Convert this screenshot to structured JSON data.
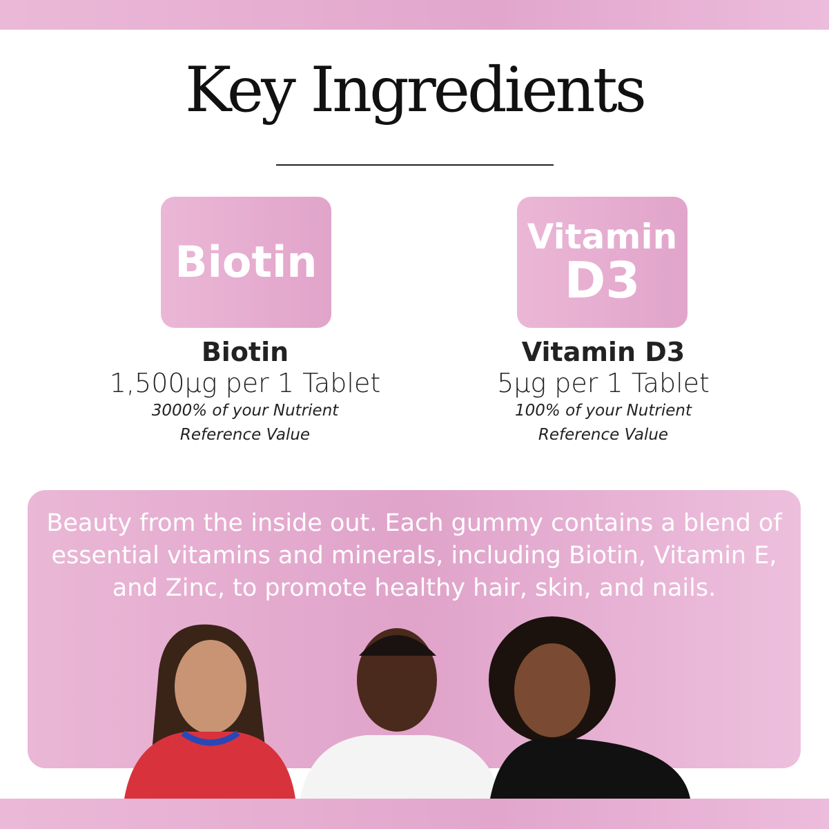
{
  "title": "Key Ingredients",
  "ingredients": [
    {
      "tile": "Biotin",
      "name": "Biotin",
      "dose": "1,500µg per 1 Tablet",
      "nrv_line1": "3000% of your Nutrient",
      "nrv_line2": "Reference Value"
    },
    {
      "tile_line1": "Vitamin",
      "tile_line2": "D3",
      "name": "Vitamin D3",
      "dose": "5µg per 1 Tablet",
      "nrv_line1": "100% of your Nutrient",
      "nrv_line2": "Reference Value"
    }
  ],
  "blurb": "Beauty from the inside out. Each gummy contains a blend of essential vitamins and minerals, including Biotin, Vitamin E, and Zinc, to promote healthy hair, skin, and nails.",
  "colors": {
    "accent_pink": "#e2a6cc",
    "text": "#222222"
  }
}
